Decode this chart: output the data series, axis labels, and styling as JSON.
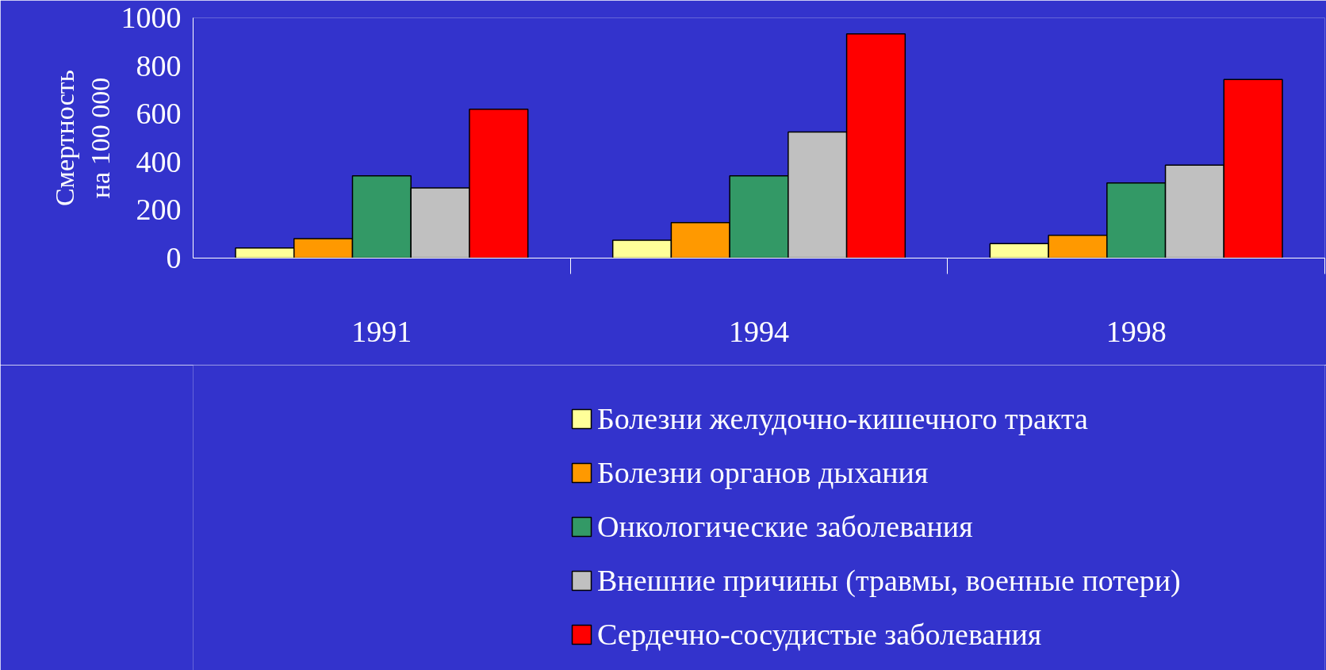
{
  "chart_data": {
    "type": "bar",
    "ylabel": "Смертность\nна 100 000",
    "categories": [
      "1991",
      "1994",
      "1998"
    ],
    "series": [
      {
        "name": "Болезни желудочно-кишечного тракта",
        "color": "#ffff99",
        "values": [
          42,
          74,
          60
        ]
      },
      {
        "name": "Болезни органов дыхания",
        "color": "#ff9900",
        "values": [
          81,
          148,
          95
        ]
      },
      {
        "name": "Онкологические заболевания",
        "color": "#339966",
        "values": [
          342,
          342,
          313
        ]
      },
      {
        "name": "Внешние причины (травмы, военные потери)",
        "color": "#c0c0c0",
        "values": [
          292,
          525,
          387
        ]
      },
      {
        "name": "Сердечно-сосудистые заболевания",
        "color": "#ff0000",
        "values": [
          620,
          933,
          743
        ]
      }
    ],
    "ylim": [
      0,
      1000
    ],
    "yticks": [
      0,
      200,
      400,
      600,
      800,
      1000
    ],
    "grid": false,
    "legend": "bottom"
  }
}
